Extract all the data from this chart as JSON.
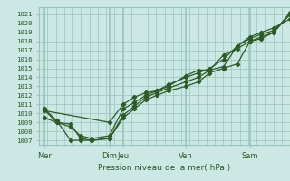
{
  "title": "Pression niveau de la mer( hPa )",
  "ylabel_values": [
    1007,
    1008,
    1009,
    1010,
    1011,
    1012,
    1013,
    1014,
    1015,
    1016,
    1017,
    1018,
    1019,
    1020,
    1021
  ],
  "ylim": [
    1006.5,
    1021.8
  ],
  "xlim": [
    0.0,
    1.0
  ],
  "background_color": "#cce8e4",
  "grid_color": "#99c4bc",
  "line_color": "#2d5a27",
  "xtick_positions": [
    0.02,
    0.28,
    0.335,
    0.585,
    0.84,
    1.0
  ],
  "xtick_labels": [
    "Mer",
    "Dim",
    "Jeu",
    "Ven",
    "Sam",
    ""
  ],
  "vline_positions": [
    0.02,
    0.28,
    0.335,
    0.585,
    0.84
  ],
  "line1": {
    "x": [
      0.02,
      0.07,
      0.125,
      0.165,
      0.21,
      0.28,
      0.335,
      0.38,
      0.425,
      0.47,
      0.515,
      0.585,
      0.635,
      0.68,
      0.735,
      0.79,
      0.84,
      0.885,
      0.935,
      1.0
    ],
    "y": [
      1010.5,
      1009.2,
      1007.0,
      1007.0,
      1007.0,
      1007.2,
      1009.5,
      1010.5,
      1011.5,
      1012.0,
      1012.5,
      1013.0,
      1013.5,
      1014.5,
      1015.0,
      1015.5,
      1018.0,
      1018.5,
      1019.0,
      1021.0
    ]
  },
  "line2": {
    "x": [
      0.02,
      0.07,
      0.125,
      0.165,
      0.21,
      0.28,
      0.335,
      0.38,
      0.425,
      0.47,
      0.515,
      0.585,
      0.635,
      0.68,
      0.735,
      0.79,
      0.84,
      0.885,
      0.935,
      1.0
    ],
    "y": [
      1009.5,
      1009.0,
      1008.5,
      1007.5,
      1007.2,
      1007.5,
      1010.5,
      1011.2,
      1012.0,
      1012.5,
      1013.2,
      1014.0,
      1014.5,
      1015.0,
      1016.0,
      1017.5,
      1018.5,
      1019.0,
      1019.5,
      1020.5
    ]
  },
  "line3": {
    "x": [
      0.02,
      0.28,
      0.335,
      0.38,
      0.425,
      0.47,
      0.515,
      0.585,
      0.635,
      0.68,
      0.735,
      0.79,
      0.84,
      0.885,
      0.935,
      1.0
    ],
    "y": [
      1010.3,
      1009.0,
      1011.0,
      1011.8,
      1012.3,
      1012.5,
      1013.0,
      1014.2,
      1014.8,
      1014.8,
      1016.5,
      1017.2,
      1018.0,
      1018.3,
      1019.0,
      1021.2
    ]
  },
  "line4": {
    "x": [
      0.02,
      0.07,
      0.125,
      0.165,
      0.21,
      0.28,
      0.335,
      0.38,
      0.425,
      0.47,
      0.515,
      0.585,
      0.635,
      0.68,
      0.735,
      0.79,
      0.84,
      0.885,
      0.935,
      1.0
    ],
    "y": [
      1010.4,
      1009.0,
      1008.8,
      1007.2,
      1007.0,
      1007.2,
      1009.8,
      1010.8,
      1011.8,
      1012.3,
      1012.8,
      1013.5,
      1014.0,
      1014.8,
      1015.2,
      1017.5,
      1018.3,
      1018.8,
      1019.2,
      1021.0
    ]
  }
}
